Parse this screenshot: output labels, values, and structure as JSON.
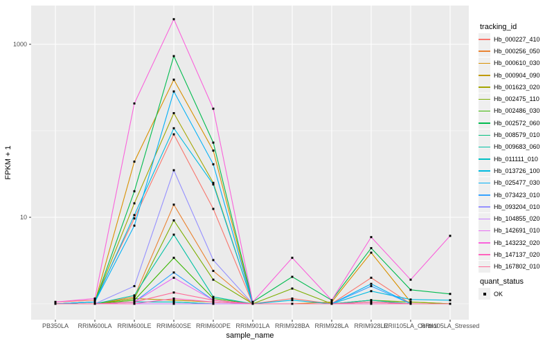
{
  "axes": {
    "x_title": "sample_name",
    "y_title": "FPKM + 1"
  },
  "legend": {
    "tracking_title": "tracking_id",
    "quant_title": "quant_status",
    "quant_item": "OK"
  },
  "chart_data": {
    "type": "line",
    "xlabel": "sample_name",
    "ylabel": "FPKM + 1",
    "y_scale": "log10",
    "y_tick_labels": [
      "1000",
      "10"
    ],
    "y_tick_values": [
      1000,
      10
    ],
    "y_minor_values": [
      100,
      1
    ],
    "legend_position": "right",
    "panel_bg": "#EBEBEB",
    "grid_color": "#FFFFFF",
    "tick_label_color": "#4D4D4D",
    "point_marker": {
      "shape": "square",
      "color": "#000000",
      "meaning": "OK"
    },
    "categories": [
      "PB350LA",
      "RRIM600LA",
      "RRIM600LE",
      "RRIM600SE",
      "RRIM600PE",
      "RRIM901LA",
      "RRIM928BA",
      "RRIM928LA",
      "RRIM928LE",
      "RRII105LA_Control",
      "RRII105LA_Stressed"
    ],
    "series": [
      {
        "name": "Hb_000227_410",
        "color": "#F8766D",
        "values": [
          1.05,
          1.1,
          9.7,
          91,
          12.5,
          1,
          1.15,
          1,
          2.0,
          1,
          1
        ]
      },
      {
        "name": "Hb_000256_050",
        "color": "#EA8331",
        "values": [
          1,
          1,
          1.2,
          14,
          2.4,
          1,
          1,
          1,
          1.1,
          1,
          1
        ]
      },
      {
        "name": "Hb_000610_030",
        "color": "#D89000",
        "values": [
          1,
          1.05,
          44,
          390,
          59,
          1,
          1,
          1.05,
          3.9,
          1.05,
          1
        ]
      },
      {
        "name": "Hb_000904_090",
        "color": "#C09B00",
        "values": [
          1,
          1,
          1.15,
          1.1,
          1.05,
          1,
          1,
          1,
          1.05,
          1,
          1
        ]
      },
      {
        "name": "Hb_001623_020",
        "color": "#A3A500",
        "values": [
          1,
          1.05,
          14.5,
          160,
          25,
          1,
          1,
          1,
          1.05,
          1,
          1
        ]
      },
      {
        "name": "Hb_002475_110",
        "color": "#7CAE00",
        "values": [
          1,
          1,
          1.15,
          9.2,
          1.9,
          1,
          1.5,
          1,
          1.1,
          1.05,
          1
        ]
      },
      {
        "name": "Hb_002486_030",
        "color": "#39B600",
        "values": [
          1,
          1,
          1.1,
          3.4,
          1.15,
          1,
          1,
          1,
          1,
          1,
          1
        ]
      },
      {
        "name": "Hb_002572_060",
        "color": "#00BB4E",
        "values": [
          1,
          1.05,
          20,
          730,
          73,
          1.05,
          2.05,
          1.1,
          4.4,
          1.45,
          1.3
        ]
      },
      {
        "name": "Hb_008579_010",
        "color": "#00BF7D",
        "values": [
          1,
          1,
          1.05,
          1.05,
          1,
          1,
          1,
          1,
          1,
          1,
          1
        ]
      },
      {
        "name": "Hb_009683_060",
        "color": "#00C1A3",
        "values": [
          1,
          1,
          1.25,
          6.3,
          1.2,
          1,
          1,
          1,
          1.1,
          1,
          1
        ]
      },
      {
        "name": "Hb_011111_010",
        "color": "#00BFC4",
        "values": [
          1,
          1,
          1.05,
          1.05,
          1,
          1,
          1,
          1,
          1,
          1,
          1
        ]
      },
      {
        "name": "Hb_013726_100",
        "color": "#00BAE0",
        "values": [
          1,
          1.05,
          10.6,
          107,
          24,
          1,
          1.1,
          1,
          1.4,
          1.12,
          1.1
        ]
      },
      {
        "name": "Hb_025477_030",
        "color": "#00B0F6",
        "values": [
          1,
          1.05,
          8.0,
          285,
          41,
          1,
          1,
          1,
          1.7,
          1,
          1
        ]
      },
      {
        "name": "Hb_073423_010",
        "color": "#35A2FF",
        "values": [
          1,
          1,
          1.05,
          2.3,
          1.1,
          1,
          1,
          1,
          1.6,
          1,
          1
        ]
      },
      {
        "name": "Hb_093204_010",
        "color": "#9590FF",
        "values": [
          1,
          1,
          1.6,
          35,
          3.2,
          1,
          1,
          1,
          1.05,
          1,
          1
        ]
      },
      {
        "name": "Hb_104855_020",
        "color": "#C77CFF",
        "values": [
          1,
          1,
          1,
          1,
          1,
          1,
          1,
          1,
          1,
          1,
          1
        ]
      },
      {
        "name": "Hb_142691_010",
        "color": "#E76BF3",
        "values": [
          1,
          1,
          1.05,
          2.0,
          1.1,
          1,
          1,
          1,
          1,
          1,
          1
        ]
      },
      {
        "name": "Hb_143232_020",
        "color": "#FA62DB",
        "values": [
          1.05,
          1.15,
          207,
          1950,
          180,
          1.05,
          3.4,
          1.1,
          5.9,
          1.9,
          6.1
        ]
      },
      {
        "name": "Hb_147137_020",
        "color": "#FF62BC",
        "values": [
          1,
          1,
          1,
          1.15,
          1.05,
          1,
          1,
          1,
          1,
          1,
          1
        ]
      },
      {
        "name": "Hb_167802_010",
        "color": "#FF6A98",
        "values": [
          1,
          1,
          1.05,
          1.35,
          1.1,
          1,
          1,
          1,
          1.05,
          1,
          1
        ]
      }
    ]
  }
}
